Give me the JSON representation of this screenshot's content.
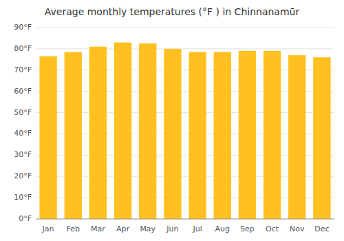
{
  "chart_data": {
    "type": "bar",
    "title": "Average monthly temperatures (°F ) in Chinnanamūr",
    "categories": [
      "Jan",
      "Feb",
      "Mar",
      "Apr",
      "May",
      "Jun",
      "Jul",
      "Aug",
      "Sep",
      "Oct",
      "Nov",
      "Dec"
    ],
    "values": [
      76.5,
      78.5,
      81.0,
      83.0,
      82.5,
      80.0,
      78.5,
      78.5,
      79.0,
      79.0,
      77.0,
      76.0
    ],
    "color": "#FFC020",
    "ylim": [
      0,
      90
    ],
    "yticks": [
      {
        "value": 0,
        "label": "0°F"
      },
      {
        "value": 10,
        "label": "10°F"
      },
      {
        "value": 20,
        "label": "20°F"
      },
      {
        "value": 30,
        "label": "30°F"
      },
      {
        "value": 40,
        "label": "40°F"
      },
      {
        "value": 50,
        "label": "50°F"
      },
      {
        "value": 60,
        "label": "60°F"
      },
      {
        "value": 70,
        "label": "70°F"
      },
      {
        "value": 80,
        "label": "80°F"
      },
      {
        "value": 90,
        "label": "90°F"
      }
    ],
    "grid": true
  }
}
